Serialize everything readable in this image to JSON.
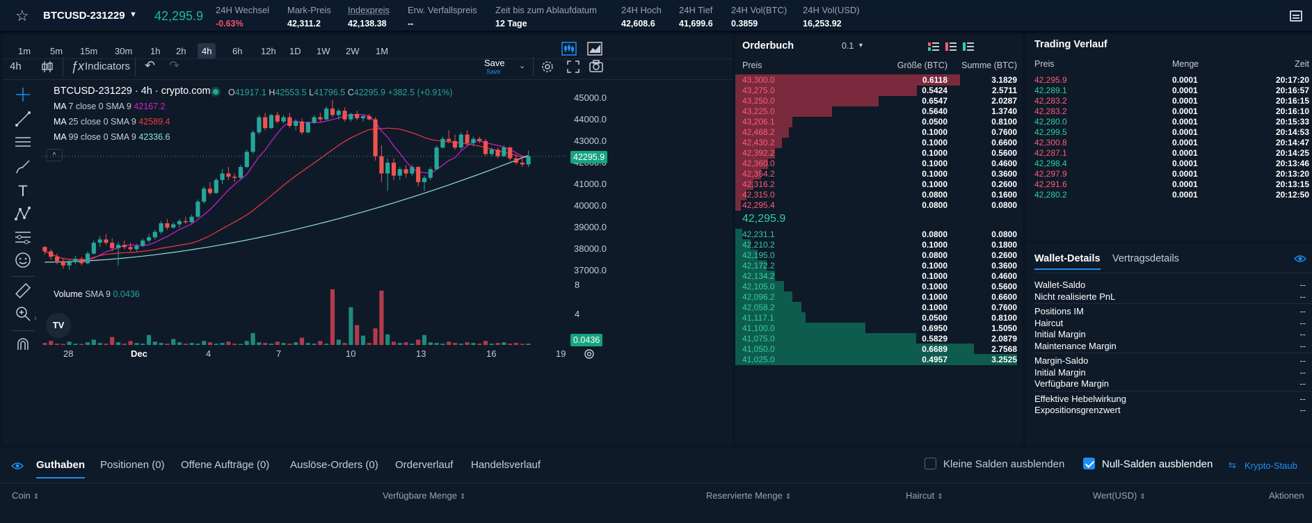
{
  "topbar": {
    "symbol": "BTCUSD-231229",
    "last_price": "42,295.9",
    "stats": [
      {
        "label": "24H Wechsel",
        "value": "-0.63%",
        "red": true
      },
      {
        "label": "Mark-Preis",
        "value": "42,311.2"
      },
      {
        "label": "Indexpreis",
        "value": "42,138.38"
      },
      {
        "label": "Erw. Verfallspreis",
        "value": "--"
      },
      {
        "label": "Zeit bis zum Ablaufdatum",
        "value": "12 Tage"
      },
      {
        "label": "24H Hoch",
        "value": "42,608.6"
      },
      {
        "label": "24H Tief",
        "value": "41,699.6"
      },
      {
        "label": "24H Vol(BTC)",
        "value": "0.3859"
      },
      {
        "label": "24H Vol(USD)",
        "value": "16,253.92"
      }
    ]
  },
  "chart": {
    "timeframes": [
      "1m",
      "5m",
      "15m",
      "30m",
      "1h",
      "2h",
      "4h",
      "6h",
      "12h",
      "1D",
      "1W",
      "2W",
      "1M"
    ],
    "active_timeframe": "4h",
    "interval": "4h",
    "indicators_label": "Indicators",
    "save_label": "Save",
    "save_sub": "Save",
    "title": "BTCUSD-231229 · 4h · crypto.com",
    "ohlc": {
      "o_label": "O",
      "o": "41917.1",
      "h_label": "H",
      "h": "42553.5",
      "l_label": "L",
      "l": "41796.5",
      "c_label": "C",
      "c": "42295.9",
      "chg": "+382.5 (+0.91%)"
    },
    "ma": [
      {
        "label": "MA",
        "params": "7 close 0 SMA 9",
        "value": "42167.2",
        "color": "#d21fd2"
      },
      {
        "label": "MA",
        "params": "25 close 0 SMA 9",
        "value": "42589.4",
        "color": "#f23645"
      },
      {
        "label": "MA",
        "params": "99 close 0 SMA 9",
        "value": "42336.6",
        "color": "#8fe3d8"
      }
    ],
    "volume": {
      "label": "Volume",
      "params": "SMA 9",
      "value": "0.0436"
    },
    "price_axis": [
      "45000.0",
      "44000.0",
      "43000.0",
      "42000.0",
      "41000.0",
      "40000.0",
      "39000.0",
      "38000.0",
      "37000.0"
    ],
    "price_tag": "42295.9",
    "volume_axis": [
      "8",
      "4"
    ],
    "volume_tag": "0.0436",
    "x_labels": [
      "28",
      "Dec",
      "4",
      "7",
      "10",
      "13",
      "16",
      "19"
    ]
  },
  "chart_data": {
    "type": "candlestick",
    "ylim": [
      36500,
      45500
    ],
    "candles": [
      [
        38100,
        38150,
        37750,
        37900
      ],
      [
        37900,
        38000,
        37500,
        37650
      ],
      [
        37650,
        37800,
        37300,
        37450
      ],
      [
        37450,
        37600,
        37100,
        37250
      ],
      [
        37250,
        37500,
        37050,
        37400
      ],
      [
        37400,
        37700,
        37300,
        37550
      ],
      [
        37550,
        37650,
        37250,
        37350
      ],
      [
        37350,
        37900,
        37300,
        37800
      ],
      [
        37800,
        38400,
        37750,
        38300
      ],
      [
        38300,
        38600,
        38100,
        38450
      ],
      [
        38450,
        38700,
        38200,
        38300
      ],
      [
        38300,
        38500,
        37900,
        38050
      ],
      [
        38050,
        38350,
        37250,
        38200
      ],
      [
        38200,
        38400,
        38000,
        38100
      ],
      [
        38100,
        38300,
        37900,
        38000
      ],
      [
        38000,
        38250,
        37900,
        38150
      ],
      [
        38150,
        38500,
        38100,
        38400
      ],
      [
        38400,
        38700,
        38300,
        38550
      ],
      [
        38550,
        38900,
        38450,
        38800
      ],
      [
        38800,
        39300,
        38700,
        39200
      ],
      [
        39200,
        39400,
        38900,
        39000
      ],
      [
        39000,
        39250,
        38950,
        39150
      ],
      [
        39150,
        39400,
        39000,
        39300
      ],
      [
        39300,
        39500,
        39150,
        39250
      ],
      [
        39250,
        39600,
        39200,
        39500
      ],
      [
        39500,
        40300,
        39450,
        40200
      ],
      [
        40200,
        40900,
        40100,
        40800
      ],
      [
        40800,
        41100,
        40500,
        40600
      ],
      [
        40600,
        41300,
        40550,
        41200
      ],
      [
        41200,
        41700,
        41000,
        41500
      ],
      [
        41500,
        41800,
        41200,
        41350
      ],
      [
        41350,
        41500,
        41100,
        41300
      ],
      [
        41300,
        41900,
        41250,
        41800
      ],
      [
        41800,
        42600,
        41750,
        42500
      ],
      [
        42500,
        43500,
        42400,
        43400
      ],
      [
        43400,
        44200,
        43300,
        44100
      ],
      [
        44100,
        44300,
        43500,
        43600
      ],
      [
        43600,
        44250,
        43550,
        44200
      ],
      [
        44200,
        44350,
        43800,
        43900
      ],
      [
        43900,
        44200,
        43800,
        44100
      ],
      [
        44100,
        44300,
        43600,
        43700
      ],
      [
        43700,
        44000,
        43500,
        43900
      ],
      [
        43900,
        44050,
        43300,
        43400
      ],
      [
        43400,
        43900,
        43350,
        43850
      ],
      [
        43850,
        44200,
        43800,
        44100
      ],
      [
        44100,
        44300,
        43900,
        44000
      ],
      [
        44000,
        44600,
        43950,
        44500
      ],
      [
        44500,
        44900,
        44100,
        44200
      ],
      [
        44200,
        44500,
        44000,
        44400
      ],
      [
        44400,
        44550,
        43900,
        44000
      ],
      [
        44000,
        44300,
        43900,
        44250
      ],
      [
        44250,
        44400,
        43950,
        44050
      ],
      [
        44050,
        44200,
        43900,
        44150
      ],
      [
        44150,
        44250,
        43950,
        44000
      ],
      [
        44000,
        44100,
        42100,
        42300
      ],
      [
        42300,
        42800,
        41100,
        41500
      ],
      [
        41500,
        42200,
        40700,
        42000
      ],
      [
        42000,
        42200,
        41200,
        41400
      ],
      [
        41400,
        41800,
        41200,
        41700
      ],
      [
        41700,
        41900,
        41300,
        41500
      ],
      [
        41500,
        41900,
        41400,
        41800
      ],
      [
        41800,
        41850,
        40900,
        41100
      ],
      [
        41100,
        41400,
        40700,
        41300
      ],
      [
        41300,
        41800,
        41200,
        41700
      ],
      [
        41700,
        42800,
        41650,
        42700
      ],
      [
        42700,
        43200,
        42650,
        43100
      ],
      [
        43100,
        43500,
        42900,
        43000
      ],
      [
        43000,
        43300,
        42600,
        42700
      ],
      [
        42700,
        43400,
        42600,
        43300
      ],
      [
        43300,
        43500,
        42800,
        42900
      ],
      [
        42900,
        43200,
        42750,
        43100
      ],
      [
        43100,
        43200,
        42900,
        43000
      ],
      [
        43000,
        43100,
        42300,
        42400
      ],
      [
        42400,
        42700,
        42300,
        42600
      ],
      [
        42600,
        42700,
        42200,
        42300
      ],
      [
        42300,
        42800,
        42250,
        42700
      ],
      [
        42700,
        42750,
        42100,
        42200
      ],
      [
        42200,
        42400,
        41900,
        42000
      ],
      [
        42000,
        42300,
        41800,
        41917
      ],
      [
        41917,
        42553,
        41796,
        42296
      ]
    ],
    "volumes": [
      0.3,
      0.6,
      0.2,
      0.1,
      0.5,
      0.2,
      0.1,
      0.4,
      0.8,
      0.3,
      0.2,
      1.2,
      0.4,
      0.2,
      0.6,
      0.3,
      0.2,
      1.5,
      0.5,
      0.3,
      0.2,
      0.9,
      0.4,
      0.2,
      0.3,
      0.2,
      0.6,
      0.4,
      0.2,
      0.3,
      0.5,
      0.2,
      0.1,
      0.6,
      1.8,
      0.4,
      0.3,
      0.2,
      0.5,
      0.3,
      0.2,
      0.4,
      1.1,
      0.3,
      0.2,
      0.6,
      0.2,
      8.4,
      0.8,
      0.3,
      5.7,
      3.0,
      1.4,
      0.3,
      2.5,
      8.2,
      1.6,
      0.5,
      0.3,
      0.4,
      0.2,
      0.8,
      1.5,
      0.4,
      0.3,
      0.2,
      0.5,
      0.3,
      0.2,
      0.4,
      0.3,
      0.2,
      0.6,
      0.2,
      0.3,
      0.4,
      0.2,
      0.3,
      0.1,
      0.2
    ]
  },
  "orderbook": {
    "title": "Orderbuch",
    "step": "0.1",
    "col_price": "Preis",
    "col_size": "Größe (BTC)",
    "col_sum": "Summe (BTC)",
    "mid_price": "42,295.9",
    "asks": [
      [
        "43,300.0",
        "0.6118",
        "3.1829"
      ],
      [
        "43,275.0",
        "0.5424",
        "2.5711"
      ],
      [
        "43,250.0",
        "0.6547",
        "2.0287"
      ],
      [
        "43,225.0",
        "0.5640",
        "1.3740"
      ],
      [
        "43,206.1",
        "0.0500",
        "0.8100"
      ],
      [
        "42,468.2",
        "0.1000",
        "0.7600"
      ],
      [
        "42,430.2",
        "0.1000",
        "0.6600"
      ],
      [
        "42,392.2",
        "0.1000",
        "0.5600"
      ],
      [
        "42,360.0",
        "0.1000",
        "0.4600"
      ],
      [
        "42,354.2",
        "0.1000",
        "0.3600"
      ],
      [
        "42,316.2",
        "0.1000",
        "0.2600"
      ],
      [
        "42,315.0",
        "0.0800",
        "0.1600"
      ],
      [
        "42,295.4",
        "0.0800",
        "0.0800"
      ]
    ],
    "bids": [
      [
        "42,231.1",
        "0.0800",
        "0.0800"
      ],
      [
        "42,210.2",
        "0.1000",
        "0.1800"
      ],
      [
        "42,195.0",
        "0.0800",
        "0.2600"
      ],
      [
        "42,172.2",
        "0.1000",
        "0.3600"
      ],
      [
        "42,134.2",
        "0.1000",
        "0.4600"
      ],
      [
        "42,105.0",
        "0.1000",
        "0.5600"
      ],
      [
        "42,096.2",
        "0.1000",
        "0.6600"
      ],
      [
        "42,058.2",
        "0.1000",
        "0.7600"
      ],
      [
        "41,117.1",
        "0.0500",
        "0.8100"
      ],
      [
        "41,100.0",
        "0.6950",
        "1.5050"
      ],
      [
        "41,075.0",
        "0.5829",
        "2.0879"
      ],
      [
        "41,050.0",
        "0.6689",
        "2.7568"
      ],
      [
        "41,025.0",
        "0.4957",
        "3.2525"
      ]
    ]
  },
  "trades": {
    "title": "Trading Verlauf",
    "col_price": "Preis",
    "col_qty": "Menge",
    "col_time": "Zeit",
    "rows": [
      [
        "42,295.9",
        "0.0001",
        "20:17:20",
        "sell"
      ],
      [
        "42,289.1",
        "0.0001",
        "20:16:57",
        "buy"
      ],
      [
        "42,283.2",
        "0.0001",
        "20:16:15",
        "sell"
      ],
      [
        "42,283.2",
        "0.0001",
        "20:16:10",
        "sell"
      ],
      [
        "42,280.0",
        "0.0001",
        "20:15:33",
        "buy"
      ],
      [
        "42,299.5",
        "0.0001",
        "20:14:53",
        "buy"
      ],
      [
        "42,300.8",
        "0.0001",
        "20:14:47",
        "sell"
      ],
      [
        "42,287.1",
        "0.0001",
        "20:14:25",
        "sell"
      ],
      [
        "42,298.4",
        "0.0001",
        "20:13:46",
        "buy"
      ],
      [
        "42,297.9",
        "0.0001",
        "20:13:20",
        "sell"
      ],
      [
        "42,291.6",
        "0.0001",
        "20:13:15",
        "sell"
      ],
      [
        "42,280.2",
        "0.0001",
        "20:12:50",
        "buy"
      ]
    ]
  },
  "wallet": {
    "tab_active": "Wallet-Details",
    "tab_other": "Vertragsdetails",
    "groups": [
      [
        [
          "Wallet-Saldo",
          "--"
        ],
        [
          "Nicht realisierte PnL",
          "--"
        ]
      ],
      [
        [
          "Positions IM",
          "--"
        ],
        [
          "Haircut",
          "--"
        ],
        [
          "Initial Margin",
          "--"
        ],
        [
          "Maintenance Margin",
          "--"
        ]
      ],
      [
        [
          "Margin-Saldo",
          "--"
        ],
        [
          "Initial Margin",
          "--"
        ],
        [
          "Verfügbare Margin",
          "--"
        ]
      ],
      [
        [
          "Effektive Hebelwirkung",
          "--"
        ],
        [
          "Expositionsgrenzwert",
          "--"
        ]
      ]
    ]
  },
  "bottom": {
    "tabs": [
      "Guthaben",
      "Positionen (0)",
      "Offene Aufträge (0)",
      "Auslöse-Orders (0)",
      "Orderverlauf",
      "Handelsverlauf"
    ],
    "hide_small": "Kleine Salden ausblenden",
    "hide_zero": "Null-Salden ausblenden",
    "dust": "Krypto-Staub",
    "columns": [
      "Coin",
      "Verfügbare Menge",
      "Reservierte Menge",
      "Haircut",
      "Wert(USD)",
      "Aktionen"
    ]
  },
  "colors": {
    "up": "#26a69a",
    "down": "#ef5350",
    "accent": "#1c8ef5",
    "bg": "#0f1a28"
  }
}
